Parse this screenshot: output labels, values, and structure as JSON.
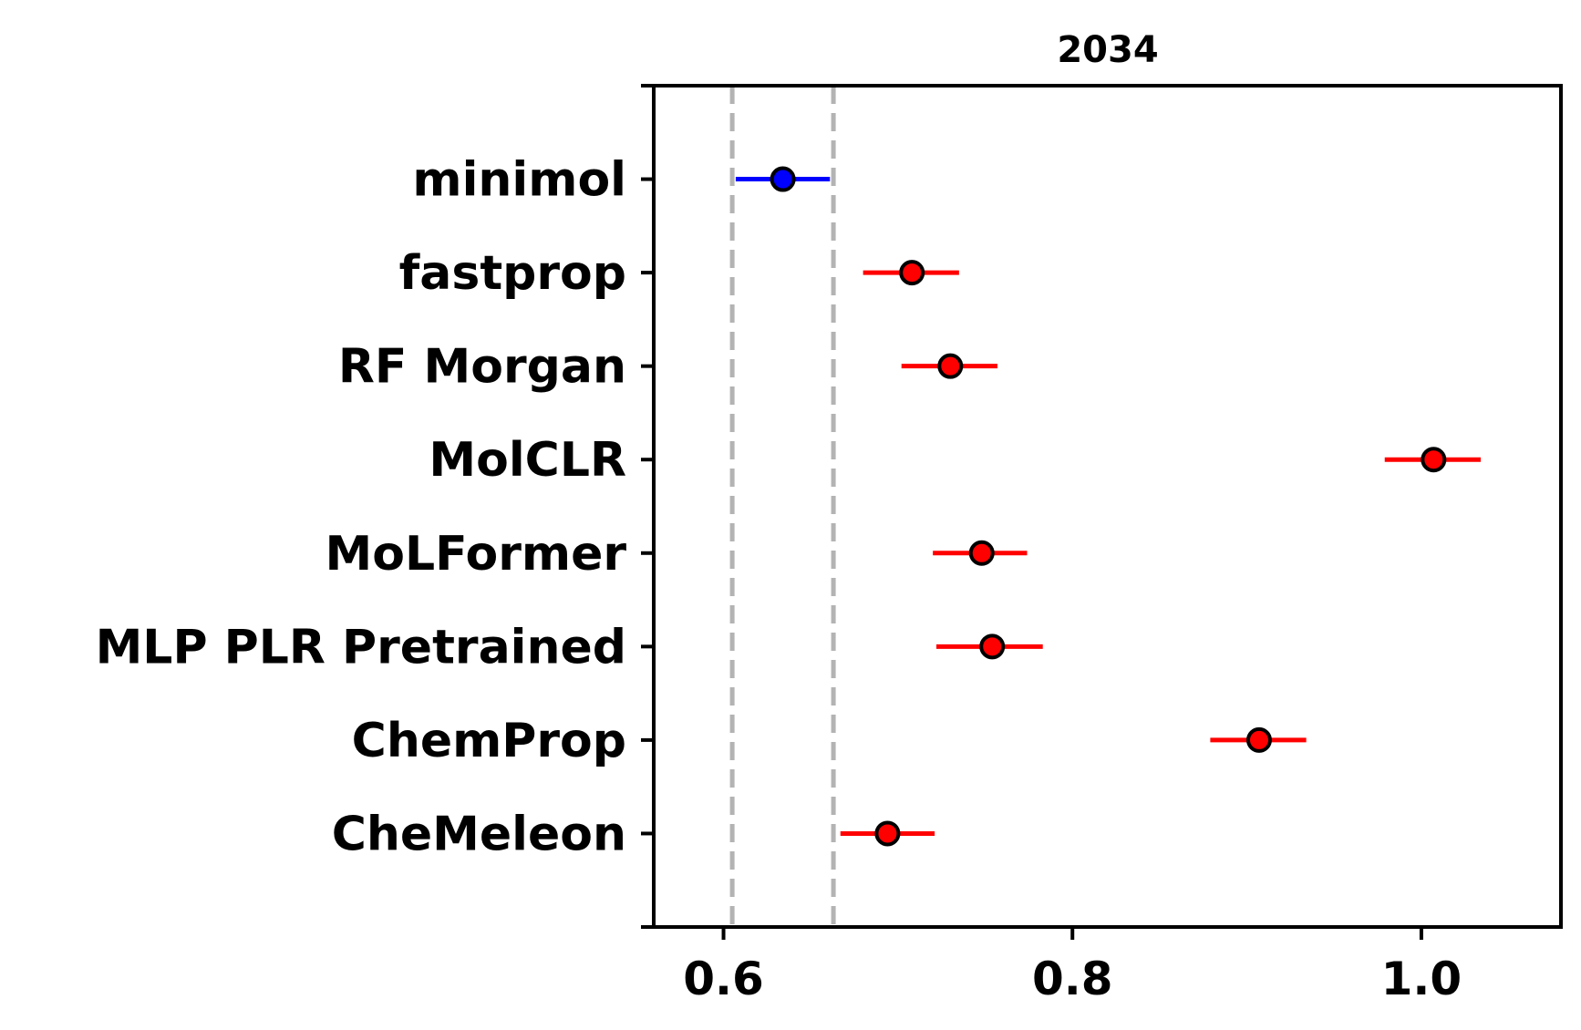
{
  "chart_data": {
    "type": "scatter",
    "subtype": "dot-and-errorbar (pairwise difference plot)",
    "title": "2034",
    "xlabel": "",
    "ylabel": "",
    "xlim": [
      0.56,
      1.08
    ],
    "xticks": [
      0.6,
      0.8,
      1.0
    ],
    "xtick_labels": [
      "0.6",
      "0.8",
      "1.0"
    ],
    "reference_band": [
      0.605,
      0.663
    ],
    "grid": false,
    "legend": "none",
    "colors": {
      "reference": "#0000ff",
      "other": "#ff0000",
      "band_line": "#b3b3b3",
      "marker_edge": "#000000"
    },
    "series": [
      {
        "label": "minimol",
        "value": 0.634,
        "ci": [
          0.607,
          0.661
        ],
        "color": "#0000ff"
      },
      {
        "label": "fastprop",
        "value": 0.708,
        "ci": [
          0.68,
          0.735
        ],
        "color": "#ff0000"
      },
      {
        "label": "RF Morgan",
        "value": 0.73,
        "ci": [
          0.702,
          0.757
        ],
        "color": "#ff0000"
      },
      {
        "label": "MolCLR",
        "value": 1.007,
        "ci": [
          0.979,
          1.034
        ],
        "color": "#ff0000"
      },
      {
        "label": "MoLFormer",
        "value": 0.748,
        "ci": [
          0.72,
          0.774
        ],
        "color": "#ff0000"
      },
      {
        "label": "MLP PLR Pretrained",
        "value": 0.754,
        "ci": [
          0.722,
          0.783
        ],
        "color": "#ff0000"
      },
      {
        "label": "ChemProp",
        "value": 0.907,
        "ci": [
          0.879,
          0.934
        ],
        "color": "#ff0000"
      },
      {
        "label": "CheMeleon",
        "value": 0.694,
        "ci": [
          0.667,
          0.721
        ],
        "color": "#ff0000"
      }
    ]
  }
}
